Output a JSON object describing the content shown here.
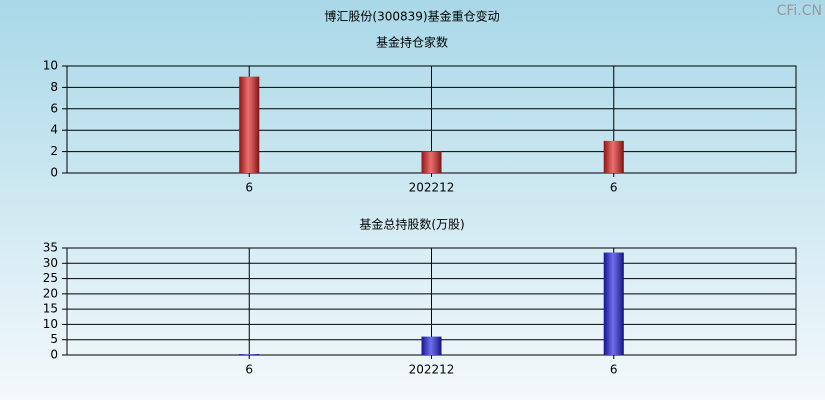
{
  "title": "博汇股份(300839)基金重仓变动",
  "watermark": "CFi.CN",
  "chart_data": [
    {
      "type": "bar",
      "title": "基金持仓家数",
      "categories": [
        "6",
        "202212",
        "6"
      ],
      "values": [
        9,
        2,
        3
      ],
      "color": "#e02020",
      "ylim": [
        0,
        10
      ],
      "yticks": [
        0,
        2,
        4,
        6,
        8,
        10
      ],
      "grid": true
    },
    {
      "type": "bar",
      "title": "基金总持股数(万股)",
      "categories": [
        "6",
        "202212",
        "6"
      ],
      "values": [
        0.3,
        6,
        33.5
      ],
      "color": "#2020e0",
      "ylim": [
        0,
        35
      ],
      "yticks": [
        0,
        5,
        10,
        15,
        20,
        25,
        30,
        35
      ],
      "grid": true
    }
  ]
}
